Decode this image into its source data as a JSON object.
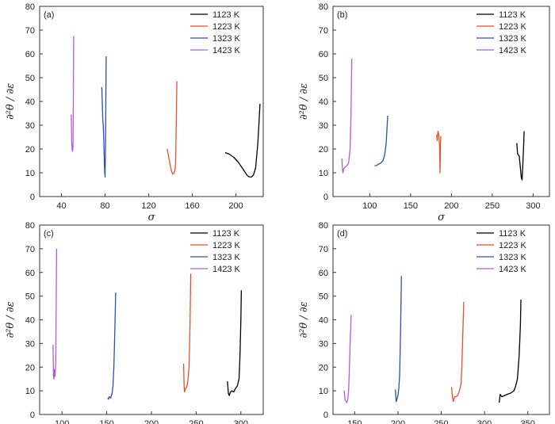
{
  "chart_data": [
    {
      "type": "line",
      "panel_label": "(a)",
      "xlabel": "σ",
      "ylabel": "∂²θ / ∂ε",
      "xlim": [
        20,
        225
      ],
      "ylim": [
        0,
        80
      ],
      "xticks": [
        40,
        80,
        120,
        160,
        200
      ],
      "yticks": [
        0,
        10,
        20,
        30,
        40,
        50,
        60,
        70,
        80
      ],
      "legend_position": "top-right",
      "series": [
        {
          "name": "1123 K",
          "color": "#000000",
          "points": [
            [
              190,
              18.5
            ],
            [
              194,
              17.8
            ],
            [
              198,
              16.5
            ],
            [
              202,
              14.5
            ],
            [
              205,
              12.5
            ],
            [
              208,
              10.5
            ],
            [
              210,
              9
            ],
            [
              212,
              8.3
            ],
            [
              214,
              8.2
            ],
            [
              216,
              9
            ],
            [
              218,
              12
            ],
            [
              220,
              22
            ],
            [
              221,
              30
            ],
            [
              222,
              39
            ]
          ]
        },
        {
          "name": "1223 K",
          "color": "#e8502a",
          "points": [
            [
              137,
              20
            ],
            [
              138,
              17.5
            ],
            [
              139,
              15
            ],
            [
              140,
              12.5
            ],
            [
              141,
              10.5
            ],
            [
              142,
              9.5
            ],
            [
              143,
              9.8
            ],
            [
              144,
              11
            ],
            [
              144.7,
              14
            ],
            [
              145,
              24
            ],
            [
              145.4,
              35
            ],
            [
              145.8,
              48.5
            ]
          ]
        },
        {
          "name": "1323 K",
          "color": "#2a4fb8",
          "points": [
            [
              77,
              46
            ],
            [
              77.5,
              38
            ],
            [
              78,
              31
            ],
            [
              78.4,
              30
            ],
            [
              79,
              20
            ],
            [
              79.5,
              12
            ],
            [
              80,
              8.2
            ],
            [
              80.4,
              22
            ],
            [
              80.7,
              40
            ],
            [
              81,
              59
            ]
          ]
        },
        {
          "name": "1423 K",
          "color": "#b05ed6",
          "points": [
            [
              49,
              34.5
            ],
            [
              49.4,
              23
            ],
            [
              49.8,
              20
            ],
            [
              50.2,
              19
            ],
            [
              50.6,
              21
            ],
            [
              50.9,
              40
            ],
            [
              51.2,
              67.5
            ]
          ]
        }
      ]
    },
    {
      "type": "line",
      "panel_label": "(b)",
      "xlabel": "σ",
      "ylabel": "∂²θ / ∂ε",
      "xlim": [
        55,
        320
      ],
      "ylim": [
        0,
        80
      ],
      "xticks": [
        100,
        150,
        200,
        250,
        300
      ],
      "yticks": [
        0,
        10,
        20,
        30,
        40,
        50,
        60,
        70,
        80
      ],
      "legend_position": "top-right",
      "series": [
        {
          "name": "1123 K",
          "color": "#000000",
          "points": [
            [
              280,
              22.5
            ],
            [
              281,
              18
            ],
            [
              283,
              17
            ],
            [
              284.5,
              12
            ],
            [
              285.5,
              8
            ],
            [
              286.5,
              7
            ],
            [
              287.5,
              14
            ],
            [
              288.5,
              22
            ],
            [
              289,
              27.5
            ]
          ]
        },
        {
          "name": "1223 K",
          "color": "#e8502a",
          "points": [
            [
              182,
              26
            ],
            [
              182.5,
              23.5
            ],
            [
              183.5,
              27.5
            ],
            [
              184.5,
              26
            ],
            [
              185.5,
              21
            ],
            [
              186,
              10
            ],
            [
              186.5,
              22
            ],
            [
              187,
              25.5
            ]
          ]
        },
        {
          "name": "1323 K",
          "color": "#2a4fb8",
          "points": [
            [
              106,
              13
            ],
            [
              108,
              13
            ],
            [
              110,
              13.5
            ],
            [
              113,
              14
            ],
            [
              116,
              15
            ],
            [
              118,
              17
            ],
            [
              120,
              22
            ],
            [
              121,
              28
            ],
            [
              122,
              34
            ]
          ]
        },
        {
          "name": "1423 K",
          "color": "#b05ed6",
          "points": [
            [
              66,
              16
            ],
            [
              66.5,
              12
            ],
            [
              67,
              10
            ],
            [
              68,
              11.5
            ],
            [
              70,
              12.5
            ],
            [
              72,
              13
            ],
            [
              74,
              14
            ],
            [
              76,
              20
            ],
            [
              77,
              35
            ],
            [
              78,
              58
            ]
          ]
        }
      ]
    },
    {
      "type": "line",
      "panel_label": "(c)",
      "xlabel": "σ",
      "ylabel": "∂²θ / ∂ε",
      "xlim": [
        75,
        325
      ],
      "ylim": [
        0,
        80
      ],
      "xticks": [
        100,
        150,
        200,
        250,
        300
      ],
      "yticks": [
        0,
        10,
        20,
        30,
        40,
        50,
        60,
        70,
        80
      ],
      "legend_position": "top-right",
      "series": [
        {
          "name": "1123 K",
          "color": "#000000",
          "points": [
            [
              285,
              14
            ],
            [
              286,
              9
            ],
            [
              287,
              8
            ],
            [
              288.5,
              9.5
            ],
            [
              290,
              10
            ],
            [
              292,
              9.5
            ],
            [
              294,
              11
            ],
            [
              296,
              12
            ],
            [
              298,
              15
            ],
            [
              299,
              25
            ],
            [
              300,
              40
            ],
            [
              300.5,
              52.5
            ]
          ]
        },
        {
          "name": "1223 K",
          "color": "#e8502a",
          "points": [
            [
              236,
              21.5
            ],
            [
              236.5,
              12
            ],
            [
              237,
              9.5
            ],
            [
              238,
              11
            ],
            [
              239.5,
              11.5
            ],
            [
              241,
              15
            ],
            [
              242,
              20
            ],
            [
              243,
              35
            ],
            [
              243.5,
              48
            ],
            [
              244,
              59.5
            ]
          ]
        },
        {
          "name": "1323 K",
          "color": "#2a4fb8",
          "points": [
            [
              151,
              7
            ],
            [
              152,
              6.5
            ],
            [
              153,
              7.5
            ],
            [
              154.5,
              7
            ],
            [
              156,
              9
            ],
            [
              157,
              12
            ],
            [
              158,
              20
            ],
            [
              159,
              35
            ],
            [
              160,
              51.5
            ]
          ]
        },
        {
          "name": "1423 K",
          "color": "#b05ed6",
          "points": [
            [
              90,
              29.5
            ],
            [
              90.5,
              16
            ],
            [
              91,
              15
            ],
            [
              91.5,
              19
            ],
            [
              92,
              16
            ],
            [
              92.5,
              18
            ],
            [
              93,
              22
            ],
            [
              93.5,
              48
            ],
            [
              94,
              70
            ]
          ]
        }
      ]
    },
    {
      "type": "line",
      "panel_label": "(d)",
      "xlabel": "σ",
      "ylabel": "∂²θ / ∂ε",
      "xlim": [
        125,
        375
      ],
      "ylim": [
        0,
        80
      ],
      "xticks": [
        150,
        200,
        250,
        300,
        350
      ],
      "yticks": [
        0,
        10,
        20,
        30,
        40,
        50,
        60,
        70,
        80
      ],
      "legend_position": "top-right",
      "series": [
        {
          "name": "1123 K",
          "color": "#000000",
          "points": [
            [
              317,
              5
            ],
            [
              318,
              8.5
            ],
            [
              320,
              7.5
            ],
            [
              323,
              8
            ],
            [
              326,
              8.5
            ],
            [
              330,
              9
            ],
            [
              334,
              10
            ],
            [
              336,
              12
            ],
            [
              338,
              15
            ],
            [
              340,
              25
            ],
            [
              341.5,
              38
            ],
            [
              342,
              48.5
            ]
          ]
        },
        {
          "name": "1223 K",
          "color": "#e8502a",
          "points": [
            [
              262,
              11.5
            ],
            [
              263,
              7
            ],
            [
              264,
              5.5
            ],
            [
              265.5,
              7.5
            ],
            [
              267,
              7.5
            ],
            [
              269,
              8
            ],
            [
              271,
              10
            ],
            [
              273,
              13
            ],
            [
              274,
              22
            ],
            [
              275,
              35
            ],
            [
              276,
              47.5
            ]
          ]
        },
        {
          "name": "1323 K",
          "color": "#2a4fb8",
          "points": [
            [
              197,
              10.5
            ],
            [
              198,
              5.5
            ],
            [
              199,
              6.5
            ],
            [
              200,
              8
            ],
            [
              201,
              11
            ],
            [
              202,
              17
            ],
            [
              203,
              35
            ],
            [
              204,
              58.5
            ]
          ]
        },
        {
          "name": "1423 K",
          "color": "#b05ed6",
          "points": [
            [
              138,
              10
            ],
            [
              139,
              6
            ],
            [
              140,
              5.5
            ],
            [
              141,
              5
            ],
            [
              142,
              6.5
            ],
            [
              143,
              10
            ],
            [
              144,
              20
            ],
            [
              145,
              32
            ],
            [
              146,
              42
            ]
          ]
        }
      ]
    }
  ]
}
